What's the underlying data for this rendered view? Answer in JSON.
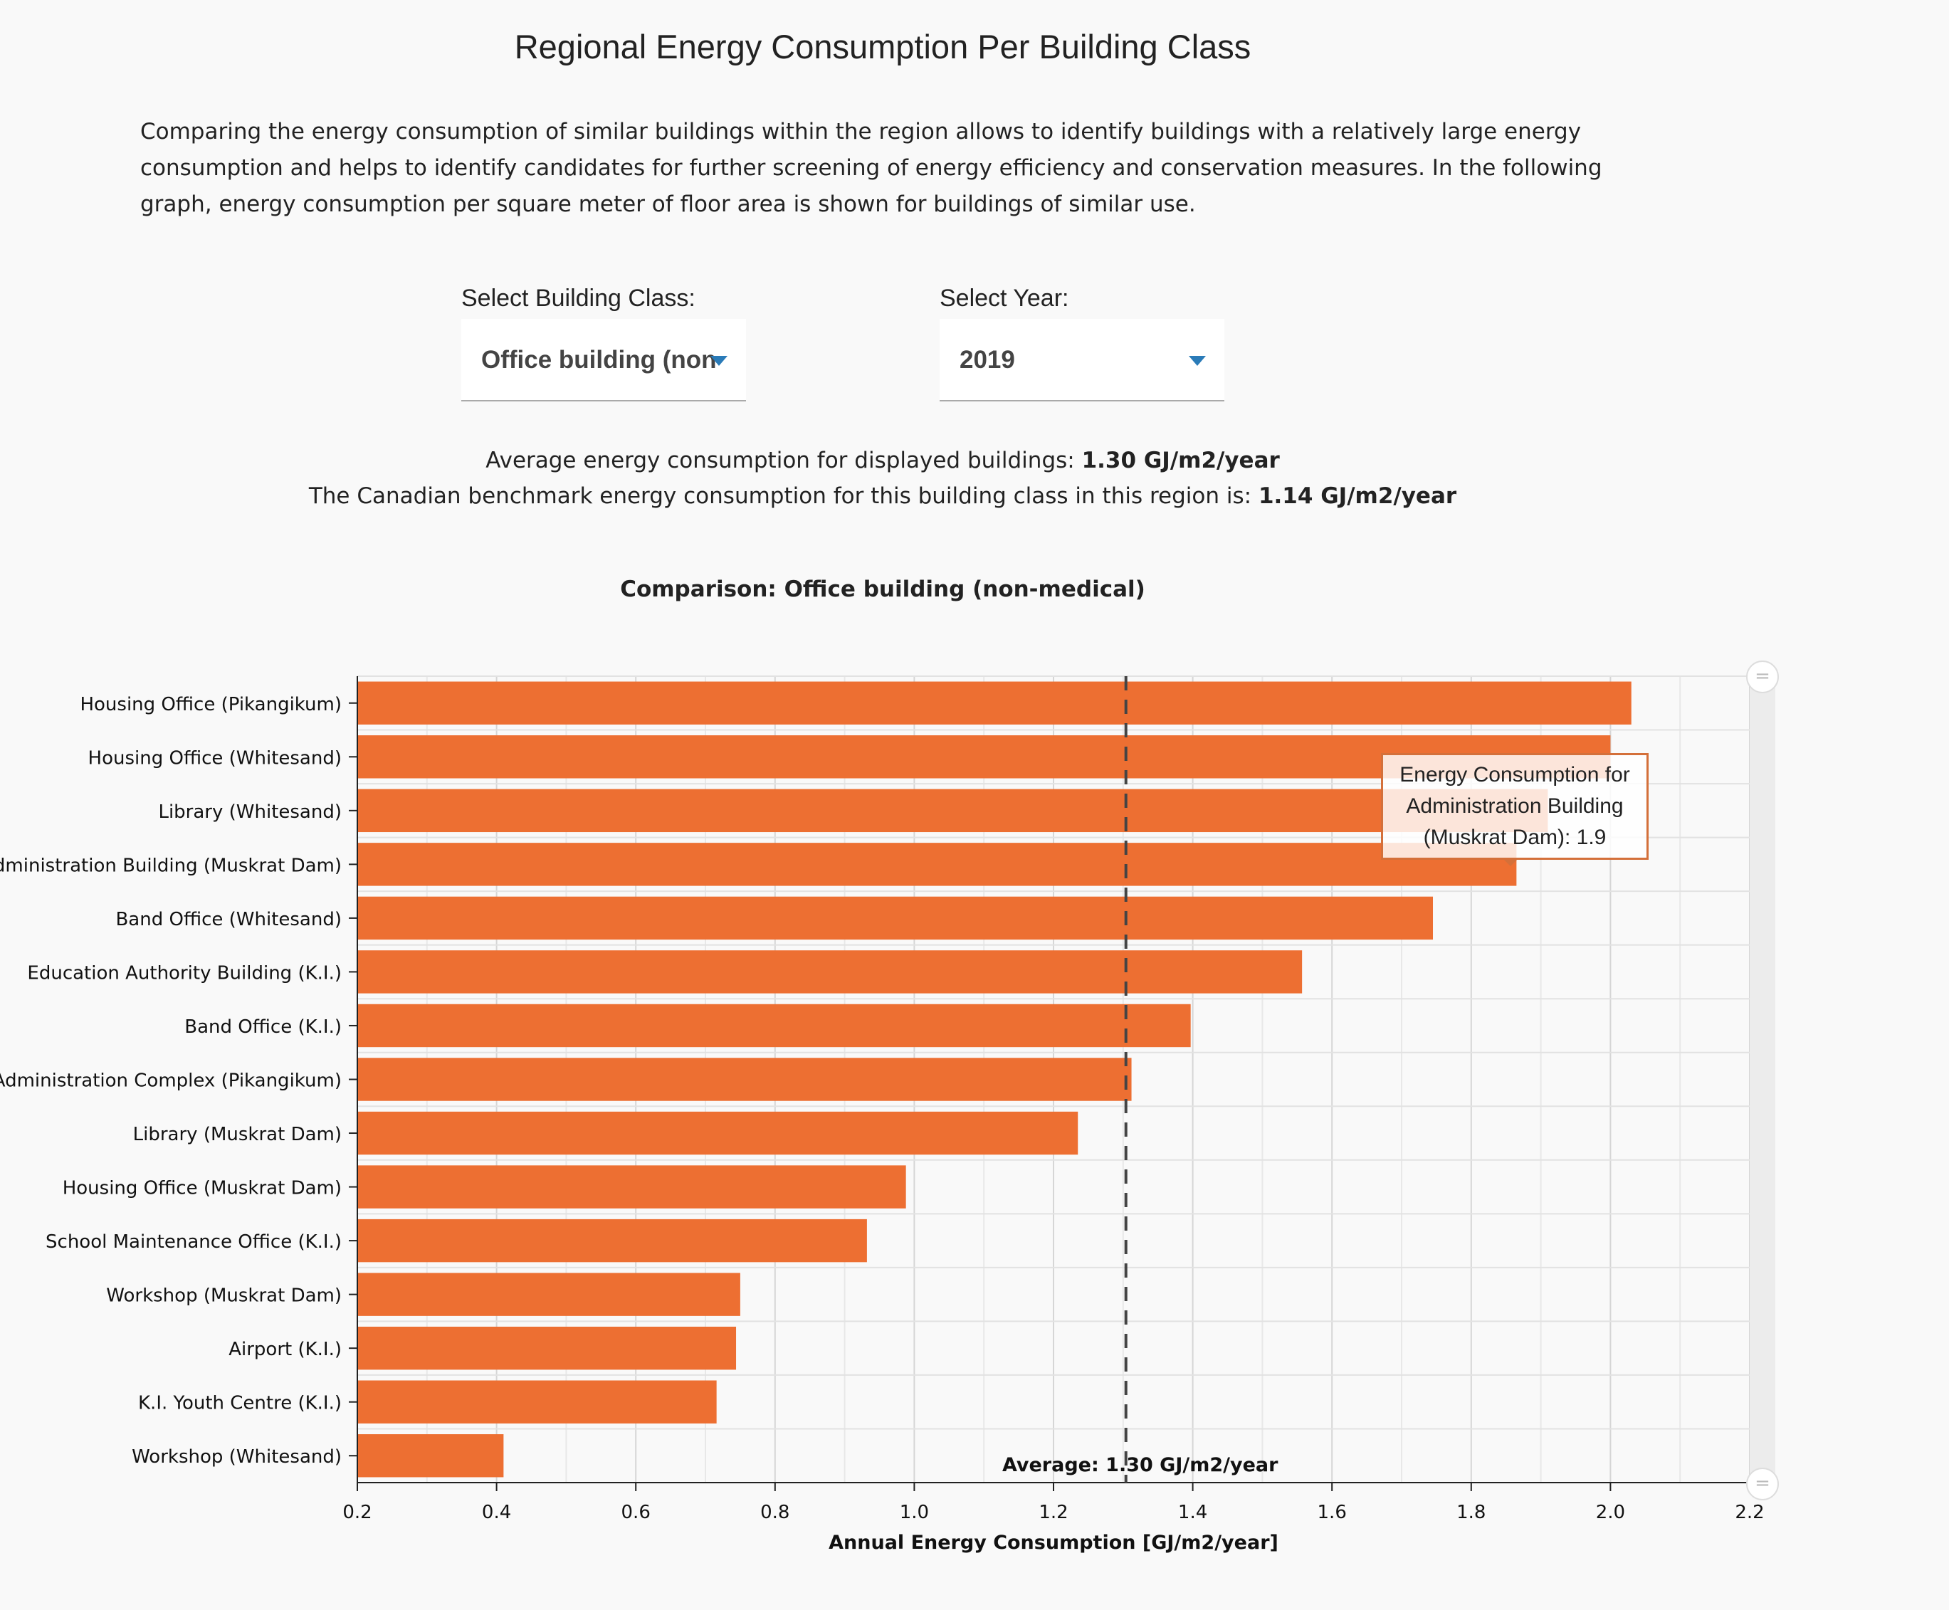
{
  "page": {
    "title": "Regional Energy Consumption Per Building Class",
    "intro": "Comparing the energy consumption of similar buildings within the region allows to identify buildings with a relatively large energy consumption and helps to identify candidates for further screening of energy efficiency and conservation measures. In the following graph, energy consumption per square meter of floor area is shown for buildings of similar use."
  },
  "controls": {
    "class_label": "Select Building Class:",
    "class_value": "Office building (non-medical)",
    "year_label": "Select Year:",
    "year_value": "2019"
  },
  "stats": {
    "average_prefix": "Average energy consumption for displayed buildings:",
    "average_value": "1.30 GJ/m2/year",
    "benchmark_prefix": "The Canadian benchmark energy consumption for this building class in this region is:",
    "benchmark_value": "1.14 GJ/m2/year"
  },
  "tooltip": {
    "text": "Energy Consumption for Administration Building (Muskrat Dam): 1.9"
  },
  "chart_data": {
    "type": "bar",
    "orientation": "horizontal",
    "title": "Comparison: Office building (non-medical)",
    "xlabel": "Annual Energy Consumption [GJ/m2/year]",
    "ylabel": "",
    "xlim": [
      0.2,
      2.2
    ],
    "xticks": [
      "0.2",
      "0.4",
      "0.6",
      "0.8",
      "1.0",
      "1.2",
      "1.4",
      "1.6",
      "1.8",
      "2.0",
      "2.2"
    ],
    "grid": true,
    "bar_color": "#ed6f32",
    "categories": [
      "Housing Office (Pikangikum)",
      "Housing Office (Whitesand)",
      "Library (Whitesand)",
      "Administration Building (Muskrat Dam)",
      "Band Office (Whitesand)",
      "Education Authority Building (K.I.)",
      "Band Office (K.I.)",
      "Administration Complex (Pikangikum)",
      "Library (Muskrat Dam)",
      "Housing Office (Muskrat Dam)",
      "School Maintenance Office (K.I.)",
      "Workshop (Muskrat Dam)",
      "Airport (K.I.)",
      "K.I. Youth Centre (K.I.)",
      "Workshop (Whitesand)"
    ],
    "values": [
      2.03,
      2.0,
      1.91,
      1.865,
      1.745,
      1.557,
      1.397,
      1.312,
      1.235,
      0.988,
      0.932,
      0.75,
      0.744,
      0.716,
      0.41
    ],
    "average_line": {
      "value": 1.304,
      "label": "Average: 1.30 GJ/m2/year",
      "style": "dashed",
      "color": "#444444"
    }
  }
}
